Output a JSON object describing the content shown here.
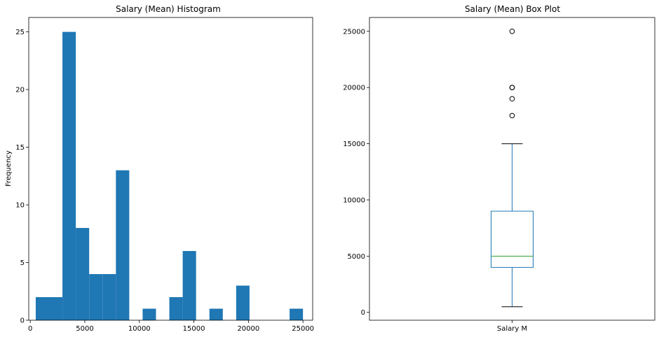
{
  "chart_data": [
    {
      "type": "bar",
      "title": "Salary (Mean) Histogram",
      "xlabel": "",
      "ylabel": "Frequency",
      "xlim": [
        -140,
        25890
      ],
      "ylim": [
        0,
        26.25
      ],
      "xticks": [
        0,
        5000,
        10000,
        15000,
        20000,
        25000
      ],
      "yticks": [
        0,
        5,
        10,
        15,
        20,
        25
      ],
      "bins": [
        {
          "x0": 500,
          "x1": 1725,
          "count": 2
        },
        {
          "x0": 1725,
          "x1": 2950,
          "count": 2
        },
        {
          "x0": 2950,
          "x1": 4175,
          "count": 25
        },
        {
          "x0": 4175,
          "x1": 5400,
          "count": 8
        },
        {
          "x0": 5400,
          "x1": 6625,
          "count": 4
        },
        {
          "x0": 6625,
          "x1": 7850,
          "count": 4
        },
        {
          "x0": 7850,
          "x1": 9075,
          "count": 13
        },
        {
          "x0": 9075,
          "x1": 10300,
          "count": 0
        },
        {
          "x0": 10300,
          "x1": 11525,
          "count": 1
        },
        {
          "x0": 11525,
          "x1": 12750,
          "count": 0
        },
        {
          "x0": 12750,
          "x1": 13975,
          "count": 2
        },
        {
          "x0": 13975,
          "x1": 15200,
          "count": 6
        },
        {
          "x0": 15200,
          "x1": 16425,
          "count": 0
        },
        {
          "x0": 16425,
          "x1": 17650,
          "count": 1
        },
        {
          "x0": 17650,
          "x1": 18875,
          "count": 0
        },
        {
          "x0": 18875,
          "x1": 20100,
          "count": 3
        },
        {
          "x0": 20100,
          "x1": 21325,
          "count": 0
        },
        {
          "x0": 21325,
          "x1": 22550,
          "count": 0
        },
        {
          "x0": 22550,
          "x1": 23775,
          "count": 0
        },
        {
          "x0": 23775,
          "x1": 25000,
          "count": 1
        }
      ],
      "color": "#1f77b4"
    },
    {
      "type": "box",
      "title": "Salary (Mean) Box Plot",
      "categories": [
        "Salary M"
      ],
      "ylim": [
        -700,
        26230
      ],
      "yticks": [
        0,
        5000,
        10000,
        15000,
        20000,
        25000
      ],
      "stats": {
        "whisker_low": 500,
        "q1": 4000,
        "median": 5000,
        "q3": 9000,
        "whisker_high": 15000,
        "outliers": [
          17500,
          19000,
          20000,
          20000,
          25000
        ]
      },
      "box_color": "#1f77b4",
      "median_color": "#2ca02c"
    }
  ]
}
